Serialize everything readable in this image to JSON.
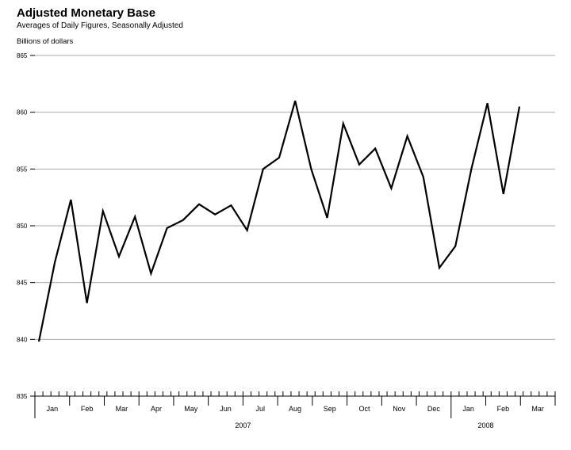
{
  "chart_data": {
    "type": "line",
    "title": "Adjusted Monetary Base",
    "subtitle": "Averages of Daily Figures, Seasonally Adjusted",
    "ylabel": "Billions of dollars",
    "ylim": [
      835,
      865
    ],
    "yticks": [
      "865",
      "860",
      "855",
      "850",
      "845",
      "840",
      "835"
    ],
    "ytick_values": [
      865,
      860,
      855,
      850,
      845,
      840,
      835
    ],
    "grid": true,
    "months": [
      "Jan",
      "Feb",
      "Mar",
      "Apr",
      "May",
      "Jun",
      "Jul",
      "Aug",
      "Sep",
      "Oct",
      "Nov",
      "Dec",
      "Jan",
      "Feb",
      "Mar"
    ],
    "years": [
      {
        "label": "2007",
        "center_month": 6
      },
      {
        "label": "2008",
        "center_month": 13
      }
    ],
    "x_unit": "week index from start of Jan 2007",
    "series": [
      {
        "values": [
          839.8,
          846.8,
          852.3,
          843.2,
          851.3,
          847.3,
          850.8,
          845.8,
          849.8,
          850.5,
          851.9,
          851.0,
          851.8,
          849.6,
          855.0,
          856.0,
          861.0,
          855.0,
          850.7,
          859.0,
          855.4,
          856.8,
          853.3,
          857.9,
          854.3,
          846.3,
          848.2,
          855.0,
          860.8,
          852.8,
          860.5
        ]
      }
    ],
    "line_color": "#000000",
    "grid_color": "#aaaaaa"
  }
}
